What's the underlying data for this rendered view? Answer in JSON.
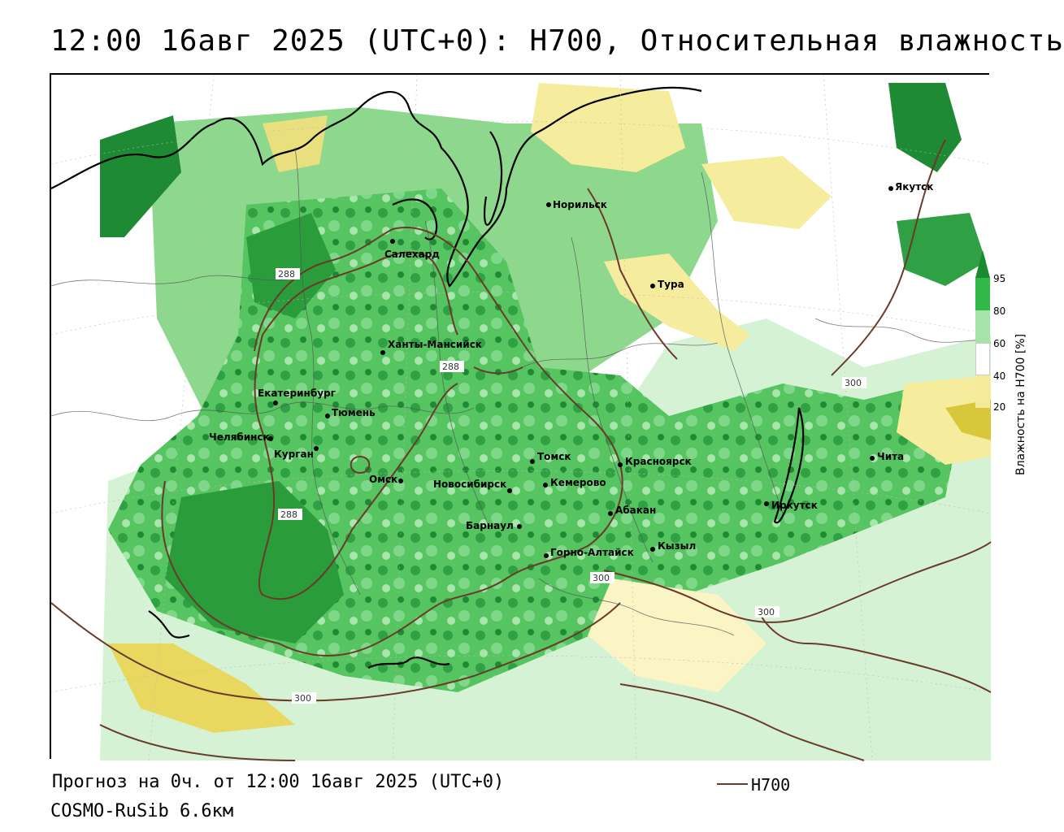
{
  "title": "12:00 16авг 2025 (UTC+0): H700, Относительная влажность",
  "footer": {
    "forecast": "Прогноз на 0ч. от 12:00 16авг 2025 (UTC+0)",
    "model": "COSMO-RuSib 6.6км",
    "legend_line_label": "H700"
  },
  "colorbar": {
    "title": "Влажность на H700 [%]",
    "ticks": [
      "95",
      "80",
      "60",
      "40",
      "20"
    ],
    "colors": {
      "c95": "#1a8a2e",
      "c80": "#33b84a",
      "c60": "#a6e3a6",
      "c40": "#ffffff",
      "c20": "#f4ea99",
      "c0": "#d8c73a"
    }
  },
  "cities": [
    {
      "name": "Салехард"
    },
    {
      "name": "Норильск"
    },
    {
      "name": "Якутск"
    },
    {
      "name": "Тура"
    },
    {
      "name": "Ханты-Мансийск"
    },
    {
      "name": "Екатеринбург"
    },
    {
      "name": "Тюмень"
    },
    {
      "name": "Челябинск"
    },
    {
      "name": "Курган"
    },
    {
      "name": "Омск"
    },
    {
      "name": "Новосибирск"
    },
    {
      "name": "Томск"
    },
    {
      "name": "Кемерово"
    },
    {
      "name": "Красноярск"
    },
    {
      "name": "Абакан"
    },
    {
      "name": "Барнаул"
    },
    {
      "name": "Горно-Алтайск"
    },
    {
      "name": "Кызыл"
    },
    {
      "name": "Иркутск"
    },
    {
      "name": "Чита"
    }
  ],
  "isolines": [
    "288",
    "288",
    "288",
    "300",
    "300",
    "300",
    "300"
  ]
}
